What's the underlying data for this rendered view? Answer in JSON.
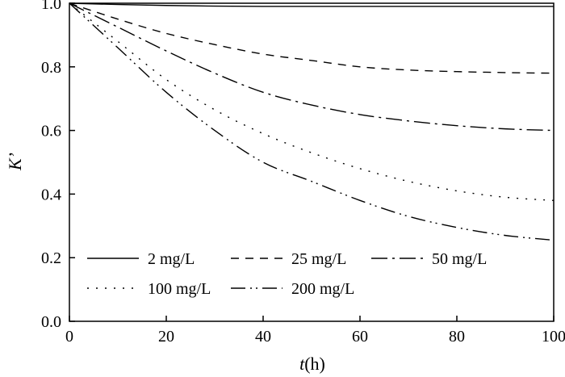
{
  "chart_data": {
    "type": "line",
    "title": "",
    "xlabel": "t(h)",
    "xlabel_italic": "t",
    "xlabel_rest": "(h)",
    "ylabel": "K’",
    "xlim": [
      0,
      100
    ],
    "ylim": [
      0.0,
      1.0
    ],
    "xticks": [
      0,
      20,
      40,
      60,
      80,
      100
    ],
    "yticks": [
      0.0,
      0.2,
      0.4,
      0.6,
      0.8,
      1.0
    ],
    "xtick_labels": [
      "0",
      "20",
      "40",
      "60",
      "80",
      "100"
    ],
    "ytick_labels": [
      "0.0",
      "0.2",
      "0.4",
      "0.6",
      "0.8",
      "1.0"
    ],
    "grid": false,
    "legend_position": "bottom-left",
    "x": [
      0,
      10,
      20,
      30,
      40,
      50,
      60,
      70,
      80,
      90,
      100
    ],
    "series": [
      {
        "name": "2 mg/L",
        "dash": "solid",
        "values": [
          1.0,
          0.996,
          0.993,
          0.991,
          0.99,
          0.99,
          0.99,
          0.99,
          0.99,
          0.99,
          0.99
        ]
      },
      {
        "name": "25 mg/L",
        "dash": "dashed",
        "values": [
          1.0,
          0.95,
          0.905,
          0.87,
          0.84,
          0.82,
          0.8,
          0.79,
          0.785,
          0.782,
          0.78
        ]
      },
      {
        "name": "50 mg/L",
        "dash": "dashdot",
        "values": [
          1.0,
          0.925,
          0.85,
          0.78,
          0.72,
          0.68,
          0.65,
          0.63,
          0.615,
          0.605,
          0.6
        ]
      },
      {
        "name": "100 mg/L",
        "dash": "dotted",
        "values": [
          1.0,
          0.88,
          0.76,
          0.665,
          0.59,
          0.53,
          0.48,
          0.44,
          0.41,
          0.39,
          0.38
        ]
      },
      {
        "name": "200 mg/L",
        "dash": "dashdotdot",
        "values": [
          1.0,
          0.86,
          0.72,
          0.6,
          0.5,
          0.44,
          0.38,
          0.33,
          0.295,
          0.27,
          0.255
        ]
      }
    ]
  }
}
